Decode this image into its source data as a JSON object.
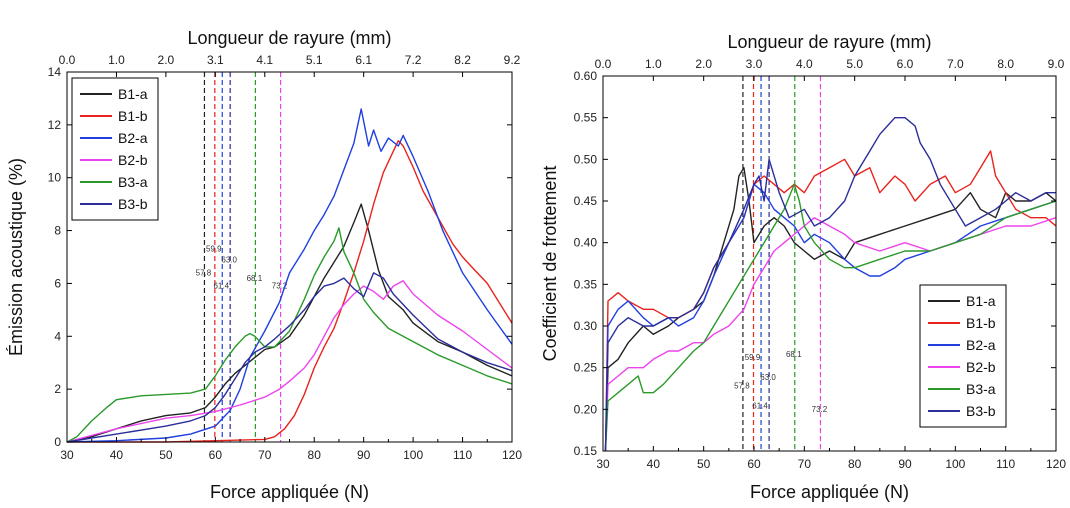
{
  "chart_data": [
    {
      "type": "line",
      "xlabel": "Force appliquée (N)",
      "ylabel": "Émission acoustique (%)",
      "top_xlabel": "Longueur de rayure (mm)",
      "xlim": [
        30,
        120
      ],
      "ylim": [
        0,
        14
      ],
      "x_ticks": [
        30,
        40,
        50,
        60,
        70,
        80,
        90,
        100,
        110,
        120
      ],
      "y_ticks": [
        0,
        2,
        4,
        6,
        8,
        10,
        12,
        14
      ],
      "top_x_ticks": [
        "0.0",
        "1.0",
        "2.0",
        "3.1",
        "4.1",
        "5.1",
        "6.1",
        "7.2",
        "8.2",
        "9.2"
      ],
      "legend_position": "top-left",
      "vlines": [
        {
          "x": 57.8,
          "label": "57.8",
          "color": "#222222",
          "label_y": 6.3
        },
        {
          "x": 59.9,
          "label": "59.9",
          "color": "#e8231d",
          "label_y": 7.2
        },
        {
          "x": 61.4,
          "label": "61.4",
          "color": "#1f3fe0",
          "label_y": 5.8
        },
        {
          "x": 63.0,
          "label": "63.0",
          "color": "#2b2d9a",
          "label_y": 6.8
        },
        {
          "x": 68.1,
          "label": "68.1",
          "color": "#2a9a2a",
          "label_y": 6.1
        },
        {
          "x": 73.2,
          "label": "73.2",
          "color": "#ee44ee",
          "label_y": 5.8
        }
      ],
      "series": [
        {
          "name": "B1-a",
          "color": "#222222",
          "x": [
            30,
            35,
            40,
            45,
            50,
            55,
            58,
            60,
            62,
            64,
            66,
            68,
            70,
            72,
            75,
            78,
            80,
            82,
            84,
            86,
            88,
            89.5,
            91,
            93,
            95,
            98,
            100,
            105,
            110,
            115,
            120
          ],
          "y": [
            0,
            0.2,
            0.5,
            0.8,
            1.0,
            1.1,
            1.3,
            1.7,
            2.2,
            2.6,
            2.9,
            3.2,
            3.5,
            3.6,
            4.0,
            4.8,
            5.5,
            6.2,
            6.8,
            7.4,
            8.3,
            9.0,
            8.0,
            6.5,
            5.5,
            5.0,
            4.5,
            3.8,
            3.4,
            2.9,
            2.5
          ]
        },
        {
          "name": "B1-b",
          "color": "#e8231d",
          "x": [
            30,
            40,
            50,
            60,
            70,
            72,
            74,
            76,
            78,
            80,
            82,
            84,
            86,
            88,
            90,
            92,
            94,
            96,
            97,
            98,
            100,
            102,
            105,
            108,
            110,
            112,
            115,
            118,
            120
          ],
          "y": [
            0,
            0,
            0,
            0.05,
            0.1,
            0.2,
            0.5,
            1.0,
            1.8,
            2.8,
            3.6,
            4.3,
            5.3,
            6.4,
            7.6,
            9.0,
            10.2,
            11.0,
            11.4,
            11.2,
            10.4,
            9.5,
            8.5,
            7.5,
            7.0,
            6.6,
            6.0,
            5.1,
            4.5
          ]
        },
        {
          "name": "B2-a",
          "color": "#1f3fe0",
          "x": [
            30,
            40,
            50,
            55,
            60,
            63,
            65,
            67,
            70,
            73,
            75,
            78,
            80,
            82,
            84,
            86,
            88,
            89.5,
            91,
            92,
            93.5,
            95,
            97,
            98,
            100,
            103,
            106,
            110,
            115,
            120
          ],
          "y": [
            0,
            0.05,
            0.15,
            0.3,
            0.6,
            1.2,
            2.0,
            3.2,
            4.2,
            5.3,
            6.4,
            7.3,
            8.0,
            8.6,
            9.3,
            10.3,
            11.3,
            12.6,
            11.2,
            11.8,
            11.0,
            11.5,
            11.2,
            11.6,
            10.8,
            9.5,
            8.0,
            6.4,
            5.0,
            3.7
          ]
        },
        {
          "name": "B2-b",
          "color": "#ee44ee",
          "x": [
            30,
            40,
            50,
            55,
            60,
            65,
            70,
            73,
            75,
            78,
            80,
            82,
            84,
            86,
            88,
            90,
            92,
            94,
            96,
            98,
            100,
            105,
            110,
            115,
            120
          ],
          "y": [
            0,
            0.5,
            0.9,
            1.0,
            1.15,
            1.4,
            1.7,
            2.0,
            2.3,
            2.8,
            3.3,
            4.0,
            4.7,
            5.2,
            5.6,
            5.9,
            5.7,
            5.4,
            5.9,
            6.1,
            5.6,
            4.8,
            4.2,
            3.5,
            2.8
          ]
        },
        {
          "name": "B3-a",
          "color": "#2a9a2a",
          "x": [
            30,
            32,
            35,
            38,
            40,
            45,
            50,
            55,
            58,
            60,
            62,
            64,
            66,
            67,
            68,
            70,
            72,
            75,
            78,
            80,
            82,
            84,
            85,
            86,
            88,
            90,
            92,
            95,
            100,
            105,
            110,
            115,
            120
          ],
          "y": [
            0,
            0.2,
            0.8,
            1.3,
            1.6,
            1.75,
            1.8,
            1.85,
            2.0,
            2.5,
            3.1,
            3.6,
            4.0,
            4.1,
            4.0,
            3.6,
            3.6,
            4.2,
            5.4,
            6.3,
            7.0,
            7.6,
            8.1,
            7.2,
            6.4,
            5.4,
            4.9,
            4.3,
            3.8,
            3.3,
            2.9,
            2.5,
            2.2
          ]
        },
        {
          "name": "B3-b",
          "color": "#2b2d9a",
          "x": [
            30,
            40,
            50,
            55,
            58,
            60,
            62,
            64,
            66,
            68,
            70,
            72,
            75,
            78,
            80,
            82,
            84,
            86,
            88,
            90,
            92,
            94,
            96,
            100,
            105,
            110,
            115,
            120
          ],
          "y": [
            0,
            0.3,
            0.6,
            0.8,
            1.0,
            1.3,
            1.8,
            2.4,
            3.0,
            3.4,
            3.6,
            3.9,
            4.4,
            5.0,
            5.5,
            5.9,
            6.0,
            6.2,
            5.8,
            5.5,
            6.4,
            6.2,
            5.6,
            4.8,
            3.9,
            3.4,
            3.0,
            2.7
          ]
        }
      ]
    },
    {
      "type": "line",
      "xlabel": "Force appliquée (N)",
      "ylabel": "Coefficient de frottement",
      "top_xlabel": "Longueur de rayure (mm)",
      "xlim": [
        30,
        120
      ],
      "ylim": [
        0.15,
        0.6
      ],
      "x_ticks": [
        30,
        40,
        50,
        60,
        70,
        80,
        90,
        100,
        110,
        120
      ],
      "y_ticks": [
        "0.15",
        "0.20",
        "0.25",
        "0.30",
        "0.35",
        "0.40",
        "0.45",
        "0.50",
        "0.55",
        "0.60"
      ],
      "top_x_ticks": [
        "0.0",
        "1.0",
        "2.0",
        "3.0",
        "4.0",
        "5.0",
        "6.0",
        "7.0",
        "8.0",
        "9.0"
      ],
      "legend_position": "bottom-right",
      "vlines": [
        {
          "x": 57.8,
          "label": "57.8",
          "color": "#222222",
          "label_y": 0.225
        },
        {
          "x": 59.9,
          "label": "59.9",
          "color": "#e8231d",
          "label_y": 0.259
        },
        {
          "x": 61.4,
          "label": "61.4",
          "color": "#1f3fe0",
          "label_y": 0.201
        },
        {
          "x": 63.0,
          "label": "63.0",
          "color": "#2b2d9a",
          "label_y": 0.235
        },
        {
          "x": 68.1,
          "label": "68.1",
          "color": "#2a9a2a",
          "label_y": 0.263
        },
        {
          "x": 73.2,
          "label": "73.2",
          "color": "#ee44ee",
          "label_y": 0.197
        }
      ],
      "series": [
        {
          "name": "B1-a",
          "color": "#222222",
          "x": [
            30.5,
            31,
            33,
            35,
            38,
            40,
            43,
            45,
            48,
            50,
            52,
            54,
            56,
            57,
            58,
            59,
            60,
            62,
            64,
            66,
            68,
            70,
            72,
            75,
            78,
            80,
            85,
            90,
            95,
            100,
            103,
            105,
            108,
            110,
            112,
            115,
            118,
            120
          ],
          "y": [
            0.15,
            0.25,
            0.26,
            0.28,
            0.3,
            0.29,
            0.3,
            0.31,
            0.32,
            0.33,
            0.36,
            0.4,
            0.44,
            0.48,
            0.49,
            0.45,
            0.4,
            0.42,
            0.43,
            0.42,
            0.4,
            0.39,
            0.38,
            0.39,
            0.38,
            0.4,
            0.41,
            0.42,
            0.43,
            0.44,
            0.46,
            0.44,
            0.43,
            0.46,
            0.45,
            0.45,
            0.46,
            0.45
          ]
        },
        {
          "name": "B1-b",
          "color": "#e8231d",
          "x": [
            30.5,
            31,
            33,
            35,
            38,
            40,
            43,
            45,
            48,
            50,
            52,
            55,
            58,
            60,
            62,
            64,
            66,
            68,
            70,
            72,
            75,
            78,
            80,
            83,
            85,
            88,
            90,
            92,
            95,
            98,
            100,
            103,
            105,
            107,
            108,
            110,
            112,
            115,
            118,
            120
          ],
          "y": [
            0.15,
            0.33,
            0.34,
            0.33,
            0.32,
            0.32,
            0.31,
            0.31,
            0.32,
            0.34,
            0.37,
            0.4,
            0.43,
            0.47,
            0.48,
            0.47,
            0.46,
            0.47,
            0.46,
            0.48,
            0.49,
            0.5,
            0.48,
            0.49,
            0.46,
            0.48,
            0.47,
            0.45,
            0.47,
            0.48,
            0.46,
            0.47,
            0.49,
            0.51,
            0.48,
            0.46,
            0.44,
            0.43,
            0.43,
            0.42
          ]
        },
        {
          "name": "B2-a",
          "color": "#1f3fe0",
          "x": [
            30.5,
            31,
            33,
            35,
            38,
            40,
            43,
            45,
            48,
            50,
            52,
            55,
            58,
            60,
            62,
            64,
            66,
            68,
            70,
            72,
            75,
            78,
            80,
            83,
            85,
            88,
            90,
            95,
            100,
            105,
            110,
            115,
            120
          ],
          "y": [
            0.15,
            0.3,
            0.32,
            0.33,
            0.31,
            0.3,
            0.31,
            0.3,
            0.31,
            0.33,
            0.36,
            0.4,
            0.43,
            0.47,
            0.46,
            0.44,
            0.43,
            0.42,
            0.4,
            0.41,
            0.4,
            0.38,
            0.37,
            0.36,
            0.36,
            0.37,
            0.38,
            0.39,
            0.4,
            0.42,
            0.43,
            0.44,
            0.45
          ]
        },
        {
          "name": "B2-b",
          "color": "#ee44ee",
          "x": [
            30.5,
            31,
            33,
            35,
            38,
            40,
            43,
            45,
            48,
            50,
            52,
            55,
            58,
            60,
            62,
            64,
            66,
            68,
            70,
            72,
            75,
            78,
            80,
            85,
            90,
            95,
            100,
            105,
            110,
            115,
            120
          ],
          "y": [
            0.15,
            0.23,
            0.24,
            0.25,
            0.25,
            0.26,
            0.27,
            0.27,
            0.28,
            0.28,
            0.29,
            0.3,
            0.32,
            0.35,
            0.37,
            0.39,
            0.4,
            0.41,
            0.42,
            0.43,
            0.42,
            0.41,
            0.4,
            0.39,
            0.4,
            0.39,
            0.4,
            0.41,
            0.42,
            0.42,
            0.43
          ]
        },
        {
          "name": "B3-a",
          "color": "#2a9a2a",
          "x": [
            30.5,
            31,
            33,
            35,
            37,
            38,
            40,
            42,
            45,
            48,
            50,
            52,
            55,
            58,
            60,
            62,
            64,
            66,
            68,
            69,
            70,
            72,
            75,
            78,
            80,
            85,
            90,
            95,
            100,
            105,
            110,
            115,
            120
          ],
          "y": [
            0.15,
            0.21,
            0.22,
            0.23,
            0.24,
            0.22,
            0.22,
            0.23,
            0.25,
            0.27,
            0.28,
            0.3,
            0.33,
            0.36,
            0.38,
            0.4,
            0.42,
            0.44,
            0.47,
            0.45,
            0.42,
            0.4,
            0.38,
            0.37,
            0.37,
            0.38,
            0.39,
            0.39,
            0.4,
            0.41,
            0.43,
            0.44,
            0.45
          ]
        },
        {
          "name": "B3-b",
          "color": "#2b2d9a",
          "x": [
            30.5,
            31,
            33,
            35,
            38,
            40,
            43,
            45,
            48,
            50,
            52,
            55,
            58,
            60,
            61,
            62,
            63,
            65,
            67,
            70,
            72,
            75,
            78,
            80,
            83,
            85,
            88,
            90,
            92,
            93,
            95,
            97,
            100,
            102,
            105,
            108,
            110,
            112,
            115,
            118,
            120
          ],
          "y": [
            0.15,
            0.28,
            0.3,
            0.31,
            0.3,
            0.3,
            0.31,
            0.31,
            0.32,
            0.34,
            0.37,
            0.4,
            0.44,
            0.47,
            0.48,
            0.45,
            0.5,
            0.46,
            0.43,
            0.44,
            0.42,
            0.43,
            0.45,
            0.48,
            0.51,
            0.53,
            0.55,
            0.55,
            0.54,
            0.52,
            0.5,
            0.47,
            0.44,
            0.42,
            0.43,
            0.44,
            0.45,
            0.46,
            0.45,
            0.46,
            0.46
          ]
        }
      ]
    }
  ]
}
